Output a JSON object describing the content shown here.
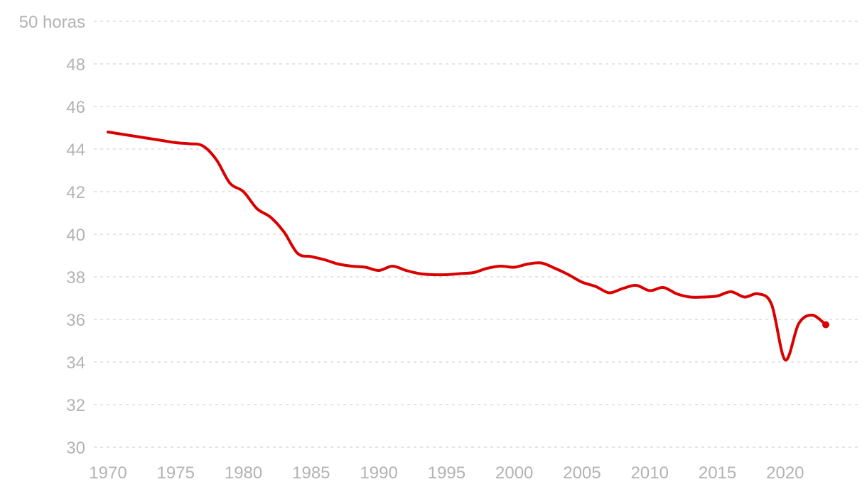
{
  "chart_data": {
    "type": "line",
    "title": "",
    "xlabel": "",
    "ylabel": "",
    "xlim": [
      1970,
      2023
    ],
    "ylim": [
      30,
      50
    ],
    "grid": true,
    "x_ticks": [
      1970,
      1975,
      1980,
      1985,
      1990,
      1995,
      2000,
      2005,
      2010,
      2015,
      2020
    ],
    "y_ticks": [
      {
        "value": 30,
        "label": "30"
      },
      {
        "value": 32,
        "label": "32"
      },
      {
        "value": 34,
        "label": "34"
      },
      {
        "value": 36,
        "label": "36"
      },
      {
        "value": 38,
        "label": "38"
      },
      {
        "value": 40,
        "label": "40"
      },
      {
        "value": 42,
        "label": "42"
      },
      {
        "value": 44,
        "label": "44"
      },
      {
        "value": 46,
        "label": "46"
      },
      {
        "value": 48,
        "label": "48"
      },
      {
        "value": 50,
        "label": "50 horas"
      }
    ],
    "series": [
      {
        "color": "#d90000",
        "end_marker": true,
        "x": [
          1970,
          1971,
          1972,
          1973,
          1974,
          1975,
          1976,
          1977,
          1978,
          1979,
          1980,
          1981,
          1982,
          1983,
          1984,
          1985,
          1986,
          1987,
          1988,
          1989,
          1990,
          1991,
          1992,
          1993,
          1994,
          1995,
          1996,
          1997,
          1998,
          1999,
          2000,
          2001,
          2002,
          2003,
          2004,
          2005,
          2006,
          2007,
          2008,
          2009,
          2010,
          2011,
          2012,
          2013,
          2014,
          2015,
          2016,
          2017,
          2018,
          2019,
          2020,
          2021,
          2022,
          2023
        ],
        "values": [
          44.8,
          44.7,
          44.6,
          44.5,
          44.4,
          44.3,
          44.25,
          44.15,
          43.5,
          42.4,
          42.0,
          41.2,
          40.8,
          40.1,
          39.1,
          38.95,
          38.8,
          38.6,
          38.5,
          38.45,
          38.3,
          38.5,
          38.3,
          38.15,
          38.1,
          38.1,
          38.15,
          38.2,
          38.4,
          38.5,
          38.45,
          38.6,
          38.65,
          38.4,
          38.1,
          37.75,
          37.55,
          37.25,
          37.45,
          37.6,
          37.35,
          37.5,
          37.2,
          37.05,
          37.05,
          37.1,
          37.3,
          37.05,
          37.2,
          36.7,
          34.1,
          35.8,
          36.2,
          35.75
        ]
      }
    ]
  }
}
